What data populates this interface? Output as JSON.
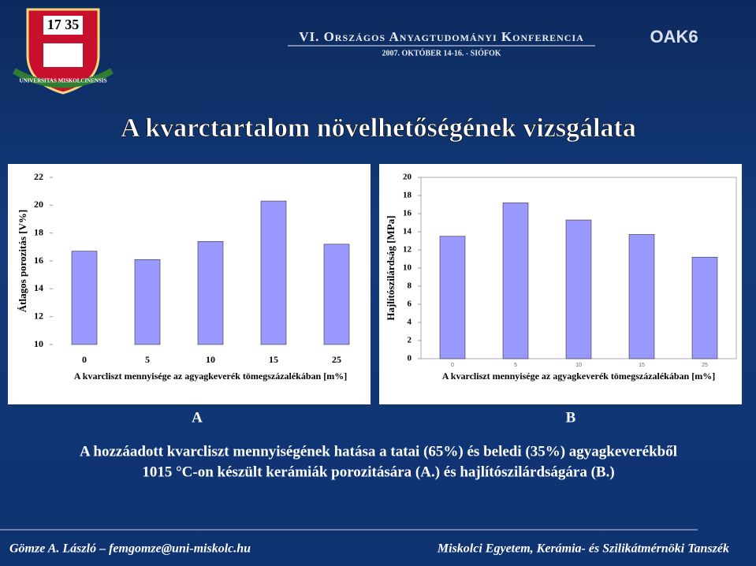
{
  "header": {
    "conference": "VI. Országos Anyagtudományi Konferencia",
    "date_place": "2007. október 14-16. - Siófok",
    "badge": "OAK6",
    "logo_year": "17 35",
    "logo_motto": "UNIVERSITAS MISKOLCINENSIS"
  },
  "title": "A kvarctartalom növelhetőségének vizsgálata",
  "chart_data": [
    {
      "type": "bar",
      "panel": "A",
      "ylabel": "Átlagos porozitás [V%]",
      "xlabel": "A kvarcliszt mennyisége az agyagkeverék tömegszázalékában [m%]",
      "categories": [
        "0",
        "5",
        "10",
        "15",
        "25"
      ],
      "values": [
        16.7,
        16.1,
        17.4,
        20.3,
        17.2
      ],
      "color": "#9999ff",
      "ylim": [
        10,
        22
      ],
      "yticks": [
        10,
        12,
        14,
        16,
        18,
        20,
        22
      ],
      "grid": false
    },
    {
      "type": "bar",
      "panel": "B",
      "ylabel": "Hajlítószilárdság [MPa]",
      "xlabel": "A kvarcliszt mennyisége az agyagkeverék tömegszázalékában [m%]",
      "categories": [
        "0",
        "5",
        "10",
        "15",
        "25"
      ],
      "values": [
        13.5,
        17.2,
        15.3,
        13.7,
        11.2
      ],
      "color": "#9999ff",
      "ylim": [
        0,
        20
      ],
      "yticks": [
        0,
        2,
        4,
        6,
        8,
        10,
        12,
        14,
        16,
        18,
        20
      ],
      "grid": false
    }
  ],
  "caption": [
    "A hozzáadott kvarcliszt mennyiségének hatása a tatai (65%) és beledi (35%) agyagkeverékből",
    "1015 °C-on készült kerámiák porozitására (A.) és hajlítószilárdságára (B.)"
  ],
  "footer": {
    "author": "Gömze A. László – femgomze@uni-miskolc.hu",
    "institution": "Miskolci Egyetem, Kerámia- és Szilikátmérnöki Tanszék"
  }
}
